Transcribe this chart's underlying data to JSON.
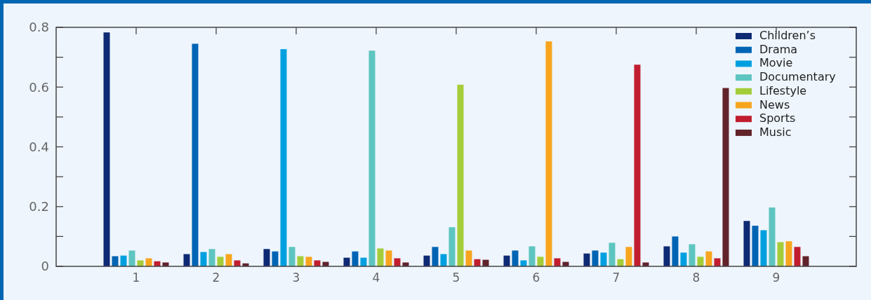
{
  "chart_data": {
    "type": "bar",
    "categories": [
      "1",
      "2",
      "3",
      "4",
      "5",
      "6",
      "7",
      "8",
      "9"
    ],
    "series": [
      {
        "name": "Children’s",
        "color": "#0f2a74",
        "values": [
          0.783,
          0.041,
          0.058,
          0.029,
          0.036,
          0.036,
          0.043,
          0.067,
          0.152
        ]
      },
      {
        "name": "Drama",
        "color": "#0064b4",
        "values": [
          0.034,
          0.745,
          0.05,
          0.05,
          0.065,
          0.053,
          0.053,
          0.1,
          0.136
        ]
      },
      {
        "name": "Movie",
        "color": "#00a0e0",
        "values": [
          0.036,
          0.048,
          0.727,
          0.029,
          0.041,
          0.02,
          0.046,
          0.046,
          0.121
        ]
      },
      {
        "name": "Documentary",
        "color": "#5ec5c0",
        "values": [
          0.053,
          0.058,
          0.065,
          0.722,
          0.131,
          0.067,
          0.079,
          0.074,
          0.197
        ]
      },
      {
        "name": "Lifestyle",
        "color": "#a5cd39",
        "values": [
          0.02,
          0.032,
          0.034,
          0.06,
          0.608,
          0.032,
          0.024,
          0.032,
          0.081
        ]
      },
      {
        "name": "News",
        "color": "#f8a51e",
        "values": [
          0.027,
          0.041,
          0.032,
          0.053,
          0.053,
          0.753,
          0.065,
          0.05,
          0.084
        ]
      },
      {
        "name": "Sports",
        "color": "#c01e2f",
        "values": [
          0.017,
          0.02,
          0.02,
          0.027,
          0.024,
          0.027,
          0.675,
          0.027,
          0.065
        ]
      },
      {
        "name": "Music",
        "color": "#62232a",
        "values": [
          0.013,
          0.01,
          0.015,
          0.013,
          0.022,
          0.015,
          0.013,
          0.597,
          0.034
        ]
      }
    ],
    "ylim": [
      0,
      0.8
    ],
    "yticks": [
      0,
      {
        "value": 0.1,
        "label": null
      },
      0.2,
      {
        "value": 0.3,
        "label": null
      },
      0.4,
      {
        "value": 0.5,
        "label": null
      },
      0.6,
      {
        "value": 0.7,
        "label": null
      },
      0.8
    ],
    "grid": false,
    "legend": "top right"
  }
}
